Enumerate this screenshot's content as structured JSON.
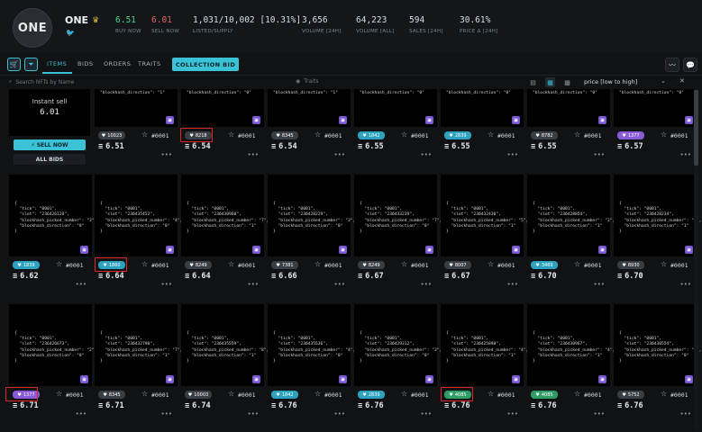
{
  "collection": {
    "logo_text": "ONE",
    "name": "ONE",
    "crown_icon": "crown-icon",
    "twitter_icon": "twitter-icon"
  },
  "stats": [
    {
      "value": "6.51",
      "label": "BUY NOW",
      "color": "green"
    },
    {
      "value": "6.01",
      "label": "SELL NOW",
      "color": "red"
    },
    {
      "value": "1,031/10,002 [10.31%]",
      "label": "LISTED/SUPPLY",
      "color": ""
    },
    {
      "value": "3,656",
      "label": "VOLUME [24H]",
      "color": ""
    },
    {
      "value": "64,223",
      "label": "VOLUME [ALL]",
      "color": ""
    },
    {
      "value": "594",
      "label": "SALES [24H]",
      "color": ""
    },
    {
      "value": "30.61%",
      "label": "PRICE Δ [24H]",
      "color": ""
    }
  ],
  "toolbar": {
    "tabs": [
      "ITEMS",
      "BIDS",
      "ORDERS",
      "TRAITS"
    ],
    "collection_bid": "COLLECTION BID"
  },
  "filter": {
    "search_placeholder": "Search NFTs by Name",
    "traits": "Traits",
    "sort": "price [low to high]"
  },
  "instant_sell": {
    "label": "Instant sell",
    "price": "6.01",
    "sell_now": "⚡ SELL NOW",
    "all_bids": "ALL BIDS"
  },
  "accent_colors": {
    "primary": "#3bc2d6",
    "badge": "#7c57d8",
    "highlight": "#e02424"
  },
  "row1": [
    {
      "json": "\"blockhash_direction\": \"1\"",
      "likes": "10023",
      "like_color": "#3a3f45",
      "id": "#0001",
      "price": "6.51"
    },
    {
      "json": "\"blockhash_direction\": \"0\"",
      "likes": "8218",
      "like_color": "#3a3f45",
      "id": "#0001",
      "price": "6.54"
    },
    {
      "json": "\"blockhash_direction\": \"1\"",
      "likes": "8345",
      "like_color": "#3a3f45",
      "id": "#0001",
      "price": "6.54"
    },
    {
      "json": "\"blockhash_direction\": \"0\"",
      "likes": "1842",
      "like_color": "#2aa2c0",
      "id": "#0001",
      "price": "6.55"
    },
    {
      "json": "\"blockhash_direction\": \"0\"",
      "likes": "2839",
      "like_color": "#2aa2c0",
      "id": "#0001",
      "price": "6.55"
    },
    {
      "json": "\"blockhash_direction\": \"0\"",
      "likes": "8782",
      "like_color": "#3a3f45",
      "id": "#0001",
      "price": "6.55"
    },
    {
      "json": "\"blockhash_direction\": \"0\"",
      "likes": "1377",
      "like_color": "#8a5ad8",
      "id": "#0001",
      "price": "6.57"
    }
  ],
  "row2": [
    {
      "json": "{\n  \"tick\": \"0001\",\n  \"slot\": \"236426120\",\n  \"blockhash_picked_number\": \"3\",\n  \"blockhash_direction\": \"0\"\n}",
      "likes": "1839",
      "like_color": "#2aa2c0",
      "id": "#0001",
      "price": "6.62"
    },
    {
      "json": "{\n  \"tick\": \"0001\",\n  \"slot\": \"236435452\",\n  \"blockhash_picked_number\": \"4\",\n  \"blockhash_direction\": \"0\"\n}",
      "likes": "1860",
      "like_color": "#2aa2c0",
      "id": "#0001",
      "price": "6.64"
    },
    {
      "json": "{\n  \"tick\": \"0001\",\n  \"slot\": \"236430960\",\n  \"blockhash_picked_number\": \"7\",\n  \"blockhash_direction\": \"1\"\n}",
      "likes": "8249",
      "like_color": "#3a3f45",
      "id": "#0001",
      "price": "6.64"
    },
    {
      "json": "{\n  \"tick\": \"0001\",\n  \"slot\": \"236428229\",\n  \"blockhash_picked_number\": \"3\",\n  \"blockhash_direction\": \"0\"\n}",
      "likes": "7381",
      "like_color": "#3a3f45",
      "id": "#0001",
      "price": "6.66"
    },
    {
      "json": "{\n  \"tick\": \"0001\",\n  \"slot\": \"236433239\",\n  \"blockhash_picked_number\": \"7\",\n  \"blockhash_direction\": \"0\"\n}",
      "likes": "8249",
      "like_color": "#3a3f45",
      "id": "#0001",
      "price": "6.67"
    },
    {
      "json": "{\n  \"tick\": \"0001\",\n  \"slot\": \"236432430\",\n  \"blockhash_picked_number\": \"5\",\n  \"blockhash_direction\": \"1\"\n}",
      "likes": "8007",
      "like_color": "#3a3f45",
      "id": "#0001",
      "price": "6.67"
    },
    {
      "json": "{\n  \"tick\": \"0001\",\n  \"slot\": \"236428854\",\n  \"blockhash_picked_number\": \"2\",\n  \"blockhash_direction\": \"1\"\n}",
      "likes": "3469",
      "like_color": "#2aa2c0",
      "id": "#0001",
      "price": "6.70"
    },
    {
      "json": "{\n  \"tick\": \"0001\",\n  \"slot\": \"236428234\",\n  \"blockhash_picked_number\": \"9\",\n  \"blockhash_direction\": \"1\"\n}",
      "likes": "8930",
      "like_color": "#3a3f45",
      "id": "#0001",
      "price": "6.70"
    }
  ],
  "row3": [
    {
      "json": "{\n  \"tick\": \"0001\",\n  \"slot\": \"236426673\",\n  \"blockhash_picked_number\": \"2\",\n  \"blockhash_direction\": \"0\"\n}",
      "likes": "1377",
      "like_color": "#8a5ad8",
      "id": "#0001",
      "price": "6.71"
    },
    {
      "json": "{\n  \"tick\": \"0001\",\n  \"slot\": \"236432790\",\n  \"blockhash_picked_number\": \"7\",\n  \"blockhash_direction\": \"1\"\n}",
      "likes": "8345",
      "like_color": "#3a3f45",
      "id": "#0001",
      "price": "6.71"
    },
    {
      "json": "{\n  \"tick\": \"0001\",\n  \"slot\": \"236435559\",\n  \"blockhash_picked_number\": \"8\",\n  \"blockhash_direction\": \"1\"\n}",
      "likes": "10003",
      "like_color": "#3a3f45",
      "id": "#0001",
      "price": "6.74"
    },
    {
      "json": "{\n  \"tick\": \"0001\",\n  \"slot\": \"236435536\",\n  \"blockhash_picked_number\": \"4\",\n  \"blockhash_direction\": \"0\"\n}",
      "likes": "1842",
      "like_color": "#2aa2c0",
      "id": "#0001",
      "price": "6.76"
    },
    {
      "json": "{\n  \"tick\": \"0001\",\n  \"slot\": \"236429312\",\n  \"blockhash_picked_number\": \"3\",\n  \"blockhash_direction\": \"0\"\n}",
      "likes": "2839",
      "like_color": "#2aa2c0",
      "id": "#0001",
      "price": "6.76"
    },
    {
      "json": "{\n  \"tick\": \"0001\",\n  \"slot\": \"236425898\",\n  \"blockhash_picked_number\": \"4\",\n  \"blockhash_direction\": \"1\"\n}",
      "likes": "4085",
      "like_color": "#2f9e66",
      "id": "#0001",
      "price": "6.76"
    },
    {
      "json": "{\n  \"tick\": \"0001\",\n  \"slot\": \"236430967\",\n  \"blockhash_picked_number\": \"4\",\n  \"blockhash_direction\": \"1\"\n}",
      "likes": "4085",
      "like_color": "#2f9e66",
      "id": "#0001",
      "price": "6.76"
    },
    {
      "json": "{\n  \"tick\": \"0001\",\n  \"slot\": \"236430554\",\n  \"blockhash_picked_number\": \"9\",\n  \"blockhash_direction\": \"0\"\n}",
      "likes": "5752",
      "like_color": "#3a3f45",
      "id": "#0001",
      "price": "6.76"
    }
  ]
}
